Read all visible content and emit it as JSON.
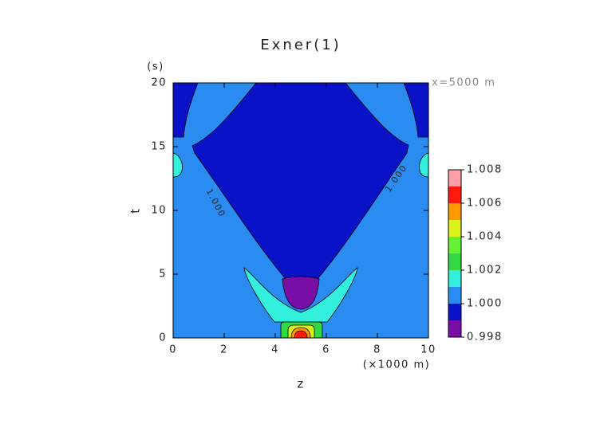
{
  "chart_data": {
    "type": "contour",
    "title": "Exner(1)",
    "x_label": "z",
    "y_label": "t",
    "x_unit": "(×1000 m)",
    "y_unit": "(s)",
    "annotation": "x=5000 m",
    "xlim": [
      0,
      10
    ],
    "xticks": [
      0,
      2,
      4,
      6,
      8,
      10
    ],
    "ylim": [
      0,
      20
    ],
    "yticks": [
      0,
      5,
      10,
      15,
      20
    ],
    "levels": [
      0.998,
      0.999,
      1,
      1.001,
      1.002,
      1.003,
      1.004,
      1.005,
      1.006,
      1.007,
      1.008
    ],
    "colors": [
      "#7a0fa8",
      "#0a12c8",
      "#2a8cf0",
      "#33f0dc",
      "#33d944",
      "#66f233",
      "#d9f219",
      "#ff9900",
      "#ff1a0d",
      "#ff9fa8"
    ],
    "colorbar_ticks": [
      0.998,
      {
        "value": 1,
        "label": "1.000"
      },
      1.002,
      1.004,
      1.006,
      1.008
    ],
    "contour_labels": [
      "1.000",
      "1.000"
    ]
  }
}
